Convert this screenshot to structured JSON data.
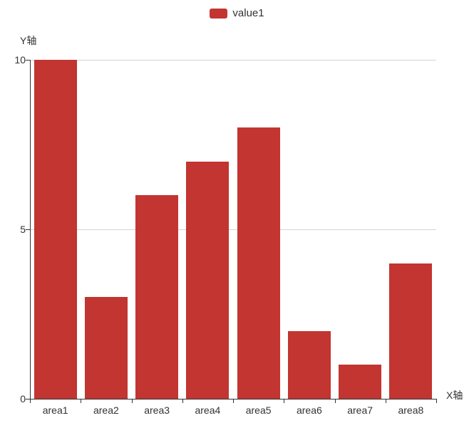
{
  "chart_data": {
    "type": "bar",
    "title": "",
    "categories": [
      "area1",
      "area2",
      "area3",
      "area4",
      "area5",
      "area6",
      "area7",
      "area8"
    ],
    "series": [
      {
        "name": "value1",
        "color": "#c23531",
        "values": [
          10,
          3,
          6,
          7,
          8,
          2,
          1,
          4
        ]
      }
    ],
    "xlabel": "X轴",
    "ylabel": "Y轴",
    "ylim": [
      0,
      10
    ],
    "yticks": [
      0,
      5,
      10
    ],
    "grid": true,
    "legend_position": "top-center"
  },
  "legend": {
    "label": "value1",
    "marker_icon": "rounded-rect-swatch"
  },
  "colors": {
    "bar": "#c23531",
    "axis_line": "#333333",
    "gridline": "#d4d4d4",
    "text": "#333333",
    "background": "#ffffff"
  }
}
